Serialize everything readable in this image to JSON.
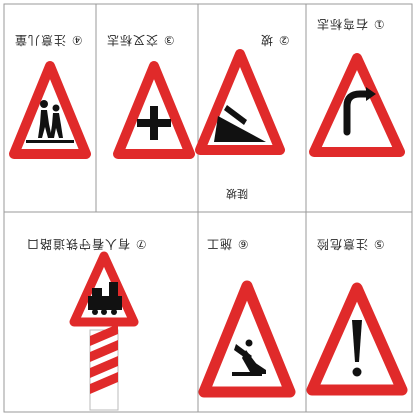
{
  "panels": [
    {
      "id": "1",
      "caption": "① 右弯标志"
    },
    {
      "id": "2",
      "caption": "② 坡"
    },
    {
      "id": "3",
      "caption": "③ 交叉标志"
    },
    {
      "id": "4",
      "caption": "④ 注意儿童"
    },
    {
      "id": "5",
      "caption": "⑤ 注意危险"
    },
    {
      "id": "6",
      "caption": "⑥ 施工"
    },
    {
      "id": "7",
      "caption": "⑦ 有人看守铁道路口"
    }
  ],
  "extra_label": "陡坡",
  "colors": {
    "border": "#e02a2a",
    "ink": "#111111",
    "grid": "#999999"
  }
}
